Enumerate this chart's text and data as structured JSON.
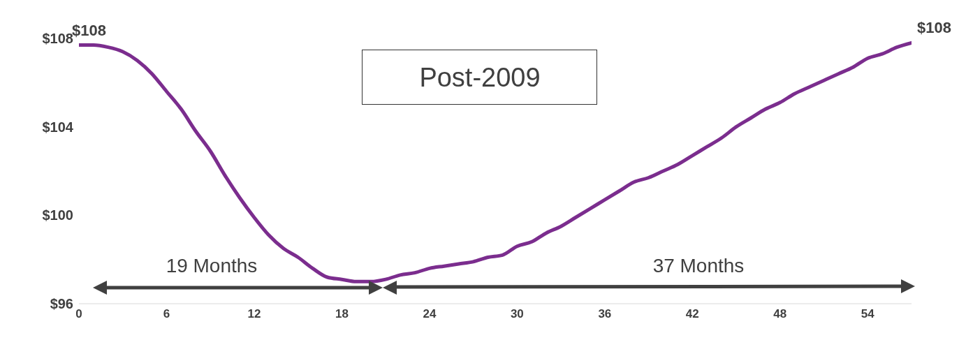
{
  "chart_data": {
    "type": "line",
    "title": "Post-2009",
    "annotations": [
      "19 Months",
      "37 Months"
    ],
    "x": [
      0,
      1,
      2,
      3,
      4,
      5,
      6,
      7,
      8,
      9,
      10,
      11,
      12,
      13,
      14,
      15,
      16,
      17,
      18,
      19,
      20,
      21,
      22,
      23,
      24,
      25,
      26,
      27,
      28,
      29,
      30,
      31,
      32,
      33,
      34,
      35,
      36,
      37,
      38,
      39,
      40,
      41,
      42,
      43,
      44,
      45,
      46,
      47,
      48,
      49,
      50,
      51,
      52,
      53,
      54,
      55,
      56,
      57
    ],
    "series": [
      {
        "color": "#7b2d8e",
        "values": [
          107.7,
          107.7,
          107.6,
          107.4,
          107.0,
          106.4,
          105.6,
          104.8,
          103.8,
          102.9,
          101.8,
          100.8,
          99.9,
          99.1,
          98.5,
          98.1,
          97.6,
          97.2,
          97.1,
          97.0,
          97.0,
          97.1,
          97.3,
          97.4,
          97.6,
          97.7,
          97.8,
          97.9,
          98.1,
          98.2,
          98.6,
          98.8,
          99.2,
          99.5,
          99.9,
          100.3,
          100.7,
          101.1,
          101.5,
          101.7,
          102.0,
          102.3,
          102.7,
          103.1,
          103.5,
          104.0,
          104.4,
          104.8,
          105.1,
          105.5,
          105.8,
          106.1,
          106.4,
          106.7,
          107.1,
          107.3,
          107.6,
          107.8
        ],
        "value_labels": [
          "$108",
          null,
          null,
          null,
          null,
          null,
          null,
          null,
          null,
          null,
          null,
          null,
          null,
          null,
          null,
          null,
          null,
          null,
          null,
          null,
          null,
          null,
          null,
          null,
          null,
          null,
          null,
          null,
          null,
          null,
          null,
          null,
          null,
          null,
          null,
          null,
          null,
          null,
          null,
          null,
          null,
          null,
          null,
          null,
          null,
          null,
          null,
          null,
          null,
          null,
          null,
          null,
          null,
          null,
          null,
          null,
          null,
          "$108"
        ]
      }
    ],
    "xlim": [
      0,
      57
    ],
    "xticks": [
      0,
      6,
      12,
      18,
      24,
      30,
      36,
      42,
      48,
      54
    ],
    "ylim": [
      96,
      108
    ],
    "yticks": [
      {
        "value": 96,
        "label": "$96"
      },
      {
        "value": 100,
        "label": "$100"
      },
      {
        "value": 104,
        "label": "$104"
      },
      {
        "value": 108,
        "label": "$108"
      }
    ],
    "grid": false,
    "legend": false,
    "marker": "none",
    "line_style": "solid"
  }
}
